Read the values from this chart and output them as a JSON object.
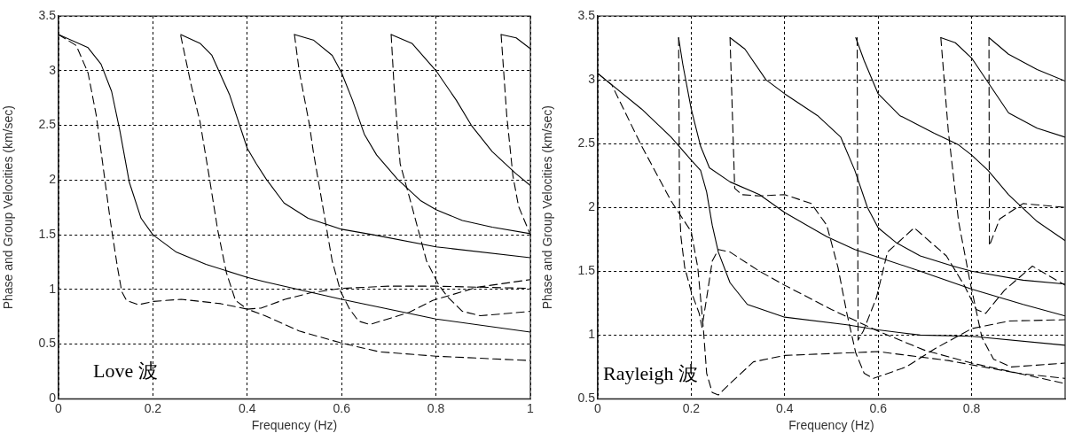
{
  "chart_data": [
    {
      "type": "line",
      "xlabel": "Frequency (Hz)",
      "ylabel": "Phase and Group Velocities (km/sec)",
      "xlim": [
        0,
        1
      ],
      "xticks": [
        0,
        0.2,
        0.4,
        0.6,
        0.8,
        1
      ],
      "ylim": [
        0,
        3.5
      ],
      "yticks": [
        0,
        0.5,
        1,
        1.5,
        2,
        2.5,
        3,
        3.5
      ],
      "grid": true,
      "legend": false,
      "marker": "none",
      "annotations": [
        "Love 波"
      ],
      "series": [
        {
          "color": "#000000",
          "line_style": "solid",
          "x": [
            0,
            0.0625,
            0.09,
            0.1125,
            0.13,
            0.15,
            0.175,
            0.2,
            0.25,
            0.3125,
            0.4,
            0.4375,
            0.6,
            0.8,
            1
          ],
          "values": [
            3.33,
            3.21,
            3.06,
            2.81,
            2.45,
            1.98,
            1.65,
            1.5,
            1.34,
            1.23,
            1.11,
            1.07,
            0.91,
            0.73,
            0.61
          ]
        },
        {
          "color": "#000000",
          "line_style": "dashed",
          "x": [
            0,
            0.0375,
            0.0625,
            0.08,
            0.097,
            0.11,
            0.125,
            0.134,
            0.144,
            0.169,
            0.2,
            0.26,
            0.344,
            0.4,
            0.4375,
            0.51,
            0.6,
            0.68,
            0.8,
            1
          ],
          "values": [
            3.33,
            3.23,
            2.98,
            2.59,
            2.04,
            1.62,
            1.2,
            0.98,
            0.9,
            0.86,
            0.89,
            0.91,
            0.87,
            0.82,
            0.76,
            0.62,
            0.51,
            0.43,
            0.39,
            0.35
          ]
        },
        {
          "color": "#000000",
          "line_style": "solid",
          "x": [
            0.259,
            0.3,
            0.325,
            0.3625,
            0.4,
            0.419,
            0.44,
            0.478,
            0.529,
            0.6,
            0.667,
            0.8,
            1
          ],
          "values": [
            3.33,
            3.25,
            3.14,
            2.78,
            2.29,
            2.15,
            2.01,
            1.79,
            1.65,
            1.55,
            1.5,
            1.39,
            1.29
          ]
        },
        {
          "color": "#000000",
          "line_style": "dashed",
          "x": [
            0.259,
            0.28,
            0.3,
            0.319,
            0.3375,
            0.356,
            0.375,
            0.4,
            0.43,
            0.48,
            0.535,
            0.6,
            0.7,
            0.8,
            1
          ],
          "values": [
            3.32,
            2.89,
            2.53,
            2.04,
            1.54,
            1.15,
            0.9,
            0.82,
            0.83,
            0.91,
            0.97,
            1.01,
            1.03,
            1.03,
            1.01
          ]
        },
        {
          "color": "#000000",
          "line_style": "solid",
          "x": [
            0.5,
            0.54,
            0.58,
            0.6,
            0.623,
            0.648,
            0.674,
            0.718,
            0.768,
            0.8,
            0.856,
            0.919,
            1
          ],
          "values": [
            3.33,
            3.28,
            3.14,
            2.98,
            2.73,
            2.42,
            2.23,
            2.01,
            1.81,
            1.73,
            1.63,
            1.57,
            1.51
          ]
        },
        {
          "color": "#000000",
          "line_style": "dashed",
          "x": [
            0.5,
            0.51,
            0.532,
            0.54,
            0.56,
            0.58,
            0.598,
            0.617,
            0.636,
            0.66,
            0.69,
            0.743,
            0.793,
            0.825,
            0.887,
            1
          ],
          "values": [
            3.33,
            3,
            2.5,
            2.26,
            1.76,
            1.26,
            0.98,
            0.82,
            0.71,
            0.68,
            0.72,
            0.79,
            0.9,
            0.94,
            1.02,
            1.09
          ]
        },
        {
          "color": "#000000",
          "line_style": "solid",
          "x": [
            0.705,
            0.749,
            0.8,
            0.843,
            0.875,
            0.919,
            0.969,
            1
          ],
          "values": [
            3.33,
            3.25,
            3,
            2.73,
            2.5,
            2.26,
            2.06,
            1.95
          ]
        },
        {
          "color": "#000000",
          "line_style": "dashed",
          "x": [
            0.705,
            0.711,
            0.724,
            0.749,
            0.78,
            0.806,
            0.825,
            0.856,
            0.894,
            0.95,
            1
          ],
          "values": [
            3.33,
            2.87,
            2.15,
            1.76,
            1.26,
            1.04,
            0.93,
            0.8,
            0.76,
            0.78,
            0.8
          ]
        },
        {
          "color": "#000000",
          "line_style": "solid",
          "x": [
            0.938,
            0.97,
            1
          ],
          "values": [
            3.33,
            3.3,
            3.2
          ]
        },
        {
          "color": "#000000",
          "line_style": "dashed",
          "x": [
            0.938,
            0.95,
            0.963,
            0.975,
            1
          ],
          "values": [
            3.33,
            2.59,
            2.04,
            1.76,
            1.5
          ]
        }
      ]
    },
    {
      "type": "line",
      "xlabel": "Frequency (Hz)",
      "ylabel": "Phase and Group Velocities (km/sec)",
      "xlim": [
        0,
        1
      ],
      "xticks": [
        0,
        0.2,
        0.4,
        0.6,
        0.8
      ],
      "ylim": [
        0.5,
        3.5
      ],
      "yticks": [
        0.5,
        1,
        1.5,
        2,
        2.5,
        3,
        3.5
      ],
      "grid": true,
      "legend": false,
      "marker": "none",
      "annotations": [
        "Rayleigh 波"
      ],
      "series": [
        {
          "color": "#000000",
          "line_style": "solid",
          "x": [
            0,
            0.094,
            0.157,
            0.2,
            0.22,
            0.233,
            0.245,
            0.258,
            0.283,
            0.32,
            0.4,
            0.533,
            0.6,
            0.69,
            0.8,
            1
          ],
          "values": [
            3.05,
            2.77,
            2.55,
            2.37,
            2.29,
            2.12,
            1.86,
            1.65,
            1.41,
            1.24,
            1.14,
            1.08,
            1.04,
            1,
            0.99,
            0.92
          ]
        },
        {
          "color": "#000000",
          "line_style": "dashed",
          "x": [
            0,
            0.03,
            0.094,
            0.157,
            0.182,
            0.2,
            0.214,
            0.226,
            0.233,
            0.245,
            0.258,
            0.283,
            0.333,
            0.4,
            0.6,
            0.75,
            0.9,
            1
          ],
          "values": [
            3.05,
            2.96,
            2.48,
            2.05,
            1.91,
            1.81,
            1.53,
            1.05,
            0.7,
            0.55,
            0.53,
            0.62,
            0.79,
            0.84,
            0.87,
            0.8,
            0.7,
            0.62
          ]
        },
        {
          "color": "#000000",
          "line_style": "solid",
          "x": [
            0.173,
            0.182,
            0.2,
            0.22,
            0.239,
            0.283,
            0.346,
            0.4,
            0.49,
            0.55,
            0.6,
            0.69,
            0.8,
            0.91,
            1
          ],
          "values": [
            3.33,
            3.12,
            2.77,
            2.48,
            2.31,
            2.2,
            2.1,
            1.96,
            1.77,
            1.67,
            1.61,
            1.5,
            1.36,
            1.24,
            1.15
          ]
        },
        {
          "color": "#000000",
          "line_style": "dashed",
          "x": [
            0.173,
            0.175,
            0.178,
            0.186,
            0.2,
            0.217,
            0.223,
            0.233,
            0.245,
            0.258,
            0.283,
            0.346,
            0.4,
            0.5,
            0.6,
            0.7,
            0.8,
            0.9,
            1
          ],
          "values": [
            3.33,
            2,
            1.77,
            1.53,
            1.34,
            1.17,
            1.06,
            1.29,
            1.58,
            1.67,
            1.65,
            1.5,
            1.39,
            1.2,
            1.03,
            0.88,
            0.78,
            0.7,
            0.66
          ]
        },
        {
          "color": "#000000",
          "line_style": "solid",
          "x": [
            0.283,
            0.315,
            0.36,
            0.4,
            0.47,
            0.52,
            0.55,
            0.577,
            0.6,
            0.64,
            0.69,
            0.76,
            0.8,
            0.91,
            1
          ],
          "values": [
            3.33,
            3.24,
            3,
            2.89,
            2.72,
            2.55,
            2.29,
            2,
            1.84,
            1.72,
            1.62,
            1.54,
            1.5,
            1.43,
            1.4
          ]
        },
        {
          "color": "#000000",
          "line_style": "dashed",
          "x": [
            0.283,
            0.293,
            0.308,
            0.346,
            0.4,
            0.457,
            0.49,
            0.514,
            0.533,
            0.552,
            0.57,
            0.59,
            0.66,
            0.72,
            0.8,
            0.88,
            1
          ],
          "values": [
            3.33,
            2.15,
            2.1,
            2.09,
            2.1,
            2.03,
            1.86,
            1.53,
            1.17,
            0.86,
            0.7,
            0.66,
            0.75,
            0.89,
            1.05,
            1.11,
            1.12
          ]
        },
        {
          "color": "#000000",
          "line_style": "solid",
          "x": [
            0.552,
            0.57,
            0.6,
            0.646,
            0.72,
            0.772,
            0.8,
            0.835,
            0.879,
            0.94,
            1
          ],
          "values": [
            3.33,
            3.15,
            2.89,
            2.72,
            2.58,
            2.49,
            2.41,
            2.29,
            2.1,
            1.89,
            1.74
          ]
        },
        {
          "color": "#000000",
          "line_style": "dashed",
          "x": [
            0.555,
            0.557,
            0.568,
            0.596,
            0.62,
            0.677,
            0.746,
            0.784,
            0.81,
            0.83,
            0.87,
            0.93,
            1
          ],
          "values": [
            3.33,
            0.96,
            1.03,
            1.29,
            1.65,
            1.84,
            1.62,
            1.39,
            1.2,
            1.17,
            1.35,
            1.54,
            1.39
          ]
        },
        {
          "color": "#000000",
          "line_style": "solid",
          "x": [
            0.734,
            0.765,
            0.8,
            0.835,
            0.879,
            0.94,
            1
          ],
          "values": [
            3.33,
            3.29,
            3.17,
            2.98,
            2.74,
            2.62,
            2.55
          ]
        },
        {
          "color": "#000000",
          "line_style": "dashed",
          "x": [
            0.734,
            0.75,
            0.772,
            0.797,
            0.822,
            0.847,
            0.885,
            1
          ],
          "values": [
            3.33,
            2.6,
            1.89,
            1.41,
            0.98,
            0.81,
            0.75,
            0.78
          ]
        },
        {
          "color": "#000000",
          "line_style": "solid",
          "x": [
            0.837,
            0.879,
            0.94,
            1
          ],
          "values": [
            3.33,
            3.2,
            3.08,
            2.99
          ]
        },
        {
          "color": "#000000",
          "line_style": "dashed",
          "x": [
            0.837,
            0.838,
            0.86,
            0.91,
            1
          ],
          "values": [
            3.33,
            1.7,
            1.91,
            2.03,
            2
          ]
        }
      ]
    }
  ]
}
